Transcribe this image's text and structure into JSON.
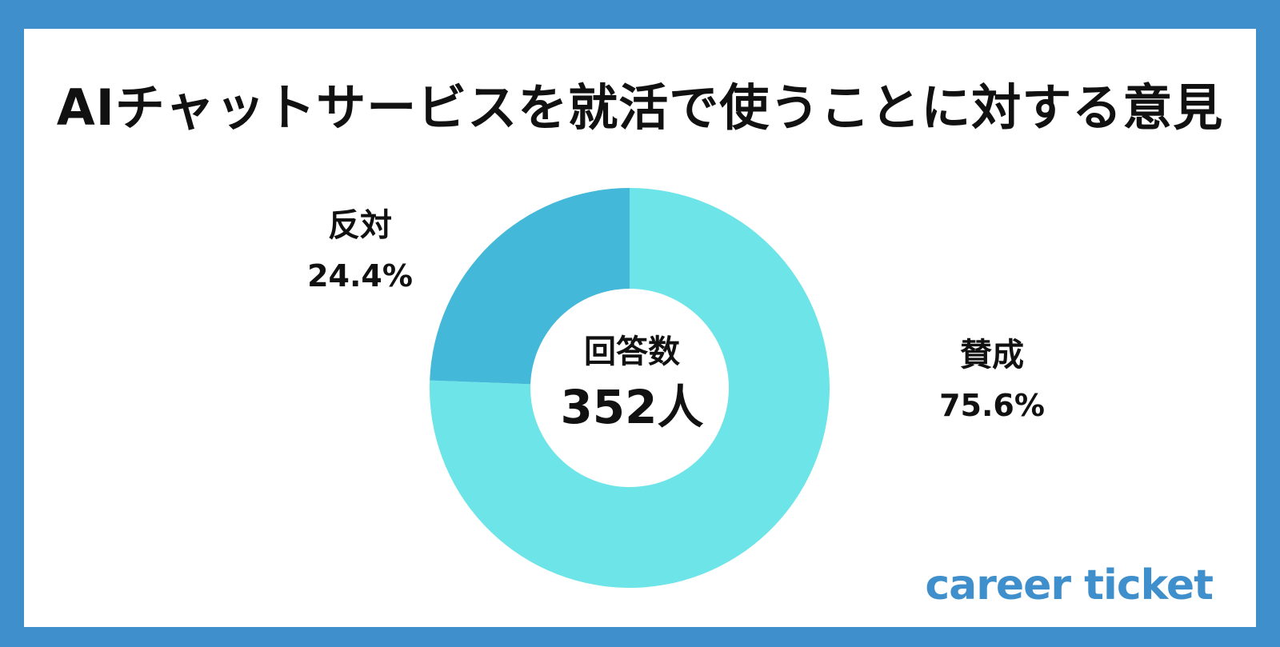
{
  "title": "AIチャットサービスを就活で使うことに対する意見",
  "center": {
    "label": "回答数",
    "value": "352人"
  },
  "logo": "career ticket",
  "colors": {
    "background": "#3e8fcc",
    "for": "#6de4e8",
    "against": "#43b8d8",
    "logo": "#3e8fcc"
  },
  "chart_data": {
    "type": "pie",
    "donut": true,
    "title": "AIチャットサービスを就活で使うことに対する意見",
    "categories": [
      "賛成",
      "反対"
    ],
    "values": [
      75.6,
      24.4
    ],
    "labels": [
      "75.6%",
      "24.4%"
    ],
    "total_label": "回答数",
    "total": "352人"
  }
}
